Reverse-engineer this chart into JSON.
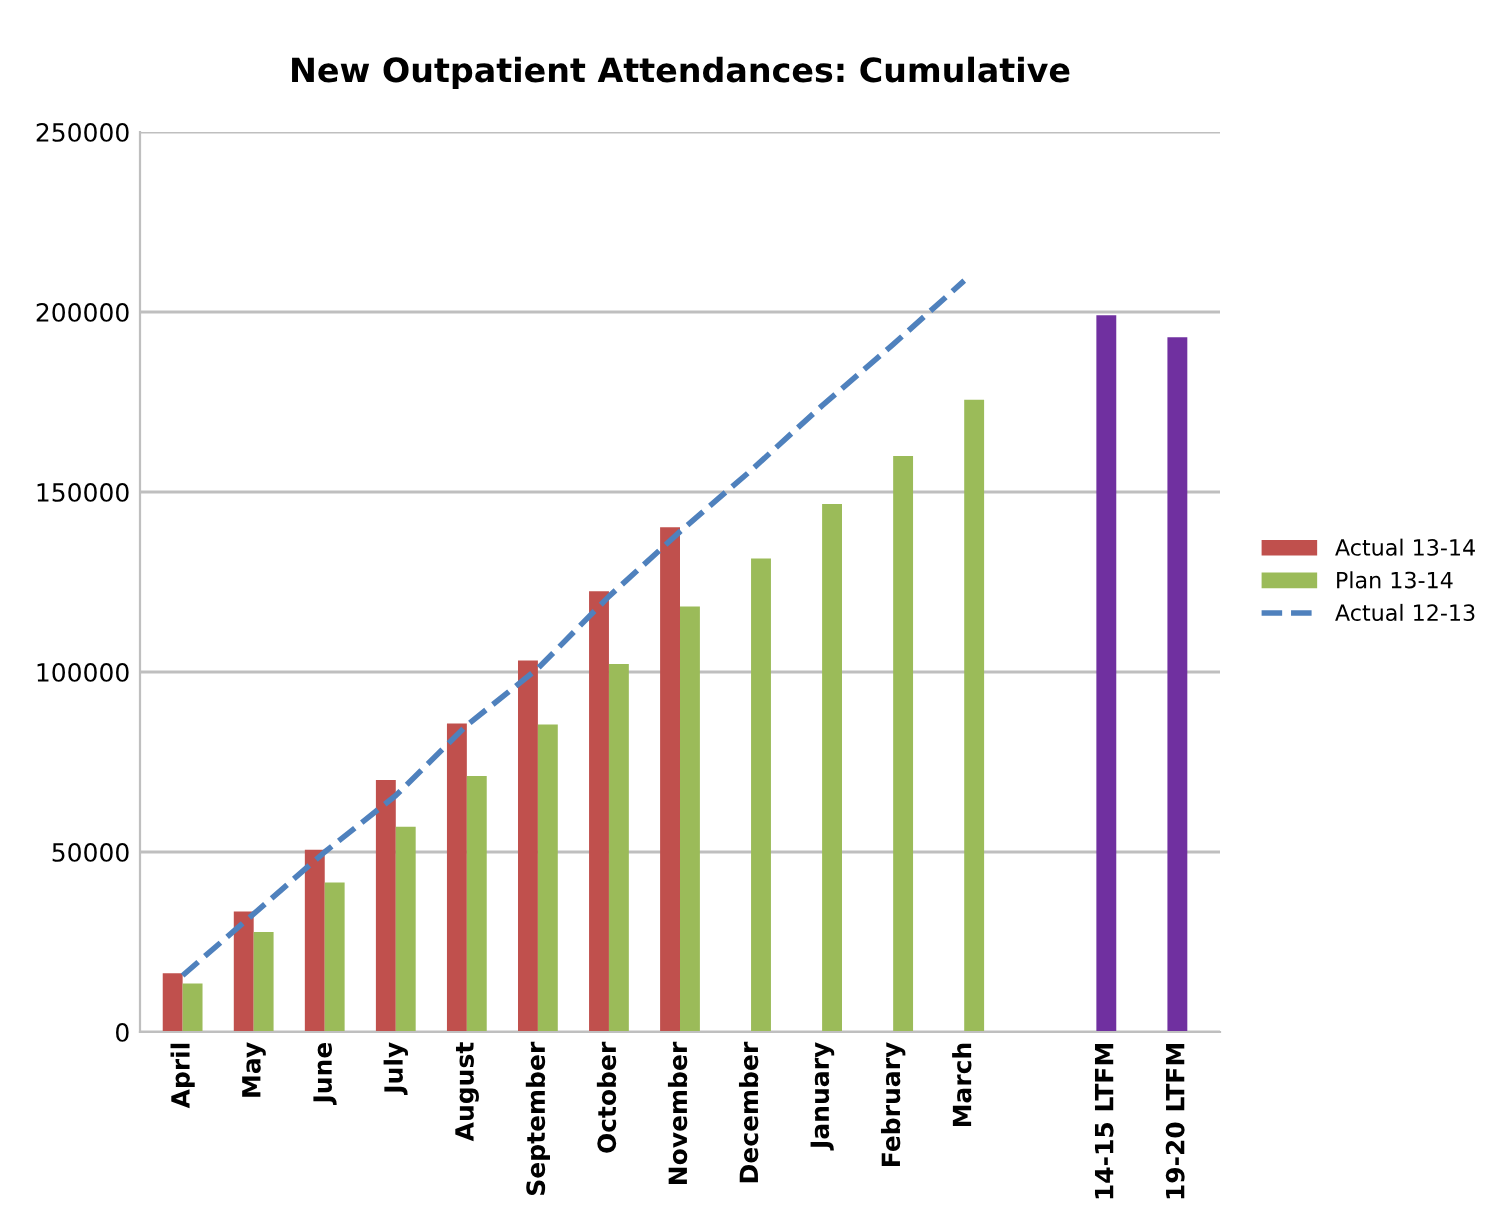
{
  "chart_data": {
    "type": "bar",
    "title": "New Outpatient Attendances: Cumulative",
    "categories": [
      "April",
      "May",
      "June",
      "July",
      "August",
      "September",
      "October",
      "November",
      "December",
      "January",
      "February",
      "March",
      null,
      "14-15 LTFM",
      "19-20 LTFM"
    ],
    "series": [
      {
        "name": "Actual 13-14",
        "color": "#c0504d",
        "values": [
          16300,
          33500,
          50600,
          70000,
          85700,
          103200,
          122400,
          140200,
          null,
          null,
          null,
          null,
          null,
          null,
          null
        ]
      },
      {
        "name": "Plan 13-14",
        "color": "#9bbb59",
        "values": [
          13500,
          27800,
          41500,
          57000,
          71100,
          85400,
          102200,
          118200,
          131500,
          146700,
          160000,
          175600,
          null,
          null,
          null
        ]
      },
      {
        "name": "Actual 12-13",
        "type": "line",
        "color": "#4f81bd",
        "line_style": "dashed",
        "values": [
          15700,
          32800,
          50000,
          65700,
          85200,
          101000,
          121000,
          139000,
          156000,
          174000,
          191000,
          208700,
          null,
          null,
          null
        ]
      },
      {
        "color": "#7030a0",
        "values": [
          null,
          null,
          null,
          null,
          null,
          null,
          null,
          null,
          null,
          null,
          null,
          null,
          null,
          199100,
          193000
        ]
      }
    ],
    "ylim": [
      0,
      250000
    ],
    "yticks": [
      0,
      50000,
      100000,
      150000,
      200000,
      250000
    ],
    "grid": "y",
    "legend": "right"
  }
}
